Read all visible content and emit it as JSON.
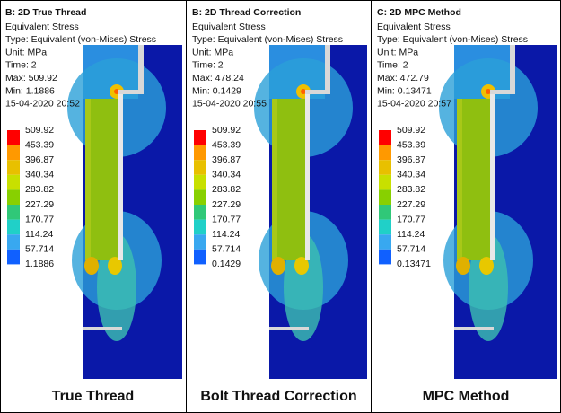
{
  "panels": [
    {
      "title": "B: 2D True Thread",
      "lines": [
        "Equivalent Stress",
        "Type: Equivalent (von-Mises) Stress",
        "Unit: MPa",
        "Time: 2",
        "Max: 509.92",
        "Min: 1.1886",
        "15-04-2020 20:52"
      ],
      "legend": [
        "509.92",
        "453.39",
        "396.87",
        "340.34",
        "283.82",
        "227.29",
        "170.77",
        "114.24",
        "57.714",
        "1.1886"
      ],
      "caption": "True Thread"
    },
    {
      "title": "B: 2D Thread Correction",
      "lines": [
        "Equivalent Stress",
        "Type: Equivalent (von-Mises) Stress",
        "Unit: MPa",
        "Time: 2",
        "Max: 478.24",
        "Min: 0.1429",
        "15-04-2020 20:55"
      ],
      "legend": [
        "509.92",
        "453.39",
        "396.87",
        "340.34",
        "283.82",
        "227.29",
        "170.77",
        "114.24",
        "57.714",
        "0.1429"
      ],
      "caption": "Bolt Thread Correction"
    },
    {
      "title": "C: 2D MPC Method",
      "lines": [
        "Equivalent Stress",
        "Type: Equivalent (von-Mises) Stress",
        "Unit: MPa",
        "Time: 2",
        "Max: 472.79",
        "Min: 0.13471",
        "15-04-2020 20:57"
      ],
      "legend": [
        "509.92",
        "453.39",
        "396.87",
        "340.34",
        "283.82",
        "227.29",
        "170.77",
        "114.24",
        "57.714",
        "0.13471"
      ],
      "caption": "MPC Method"
    }
  ]
}
